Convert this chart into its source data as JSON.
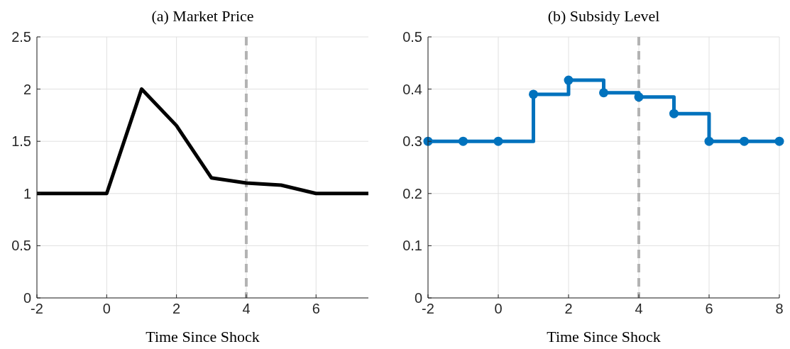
{
  "chart_data": [
    {
      "type": "line",
      "title": "(a) Market Price",
      "xlabel": "Time Since Shock",
      "x": [
        -2,
        0,
        1,
        2,
        3,
        4,
        5,
        6,
        7.5
      ],
      "series": [
        {
          "color": "#000000",
          "values": [
            1,
            1,
            2,
            1.65,
            1.15,
            1.1,
            1.08,
            1,
            1
          ]
        }
      ],
      "xlim": [
        -2,
        7.5
      ],
      "xticks": [
        -2,
        0,
        2,
        4,
        6
      ],
      "ylim": [
        0,
        2.5
      ],
      "yticks": [
        0,
        0.5,
        1,
        1.5,
        2,
        2.5
      ],
      "grid": true,
      "marker": "none",
      "line_style": "solid",
      "ref_lines": [
        {
          "axis": "x",
          "value": 4,
          "color": "#b3b3b3",
          "line_style": "dashed"
        }
      ]
    },
    {
      "type": "step",
      "title": "(b) Subsidy Level",
      "xlabel": "Time Since Shock",
      "x": [
        -2,
        -1,
        0,
        1,
        2,
        3,
        4,
        5,
        6,
        7,
        8
      ],
      "series": [
        {
          "color": "#0072bd",
          "values": [
            0.3,
            0.3,
            0.3,
            0.39,
            0.417,
            0.393,
            0.385,
            0.353,
            0.3,
            0.3,
            0.3
          ]
        }
      ],
      "xlim": [
        -2,
        8
      ],
      "xticks": [
        -2,
        0,
        2,
        4,
        6,
        8
      ],
      "ylim": [
        0,
        0.5
      ],
      "yticks": [
        0,
        0.1,
        0.2,
        0.3,
        0.4,
        0.5
      ],
      "grid": true,
      "marker": "circle",
      "line_style": "solid",
      "ref_lines": [
        {
          "axis": "x",
          "value": 4,
          "color": "#b3b3b3",
          "line_style": "dashed"
        }
      ]
    }
  ]
}
